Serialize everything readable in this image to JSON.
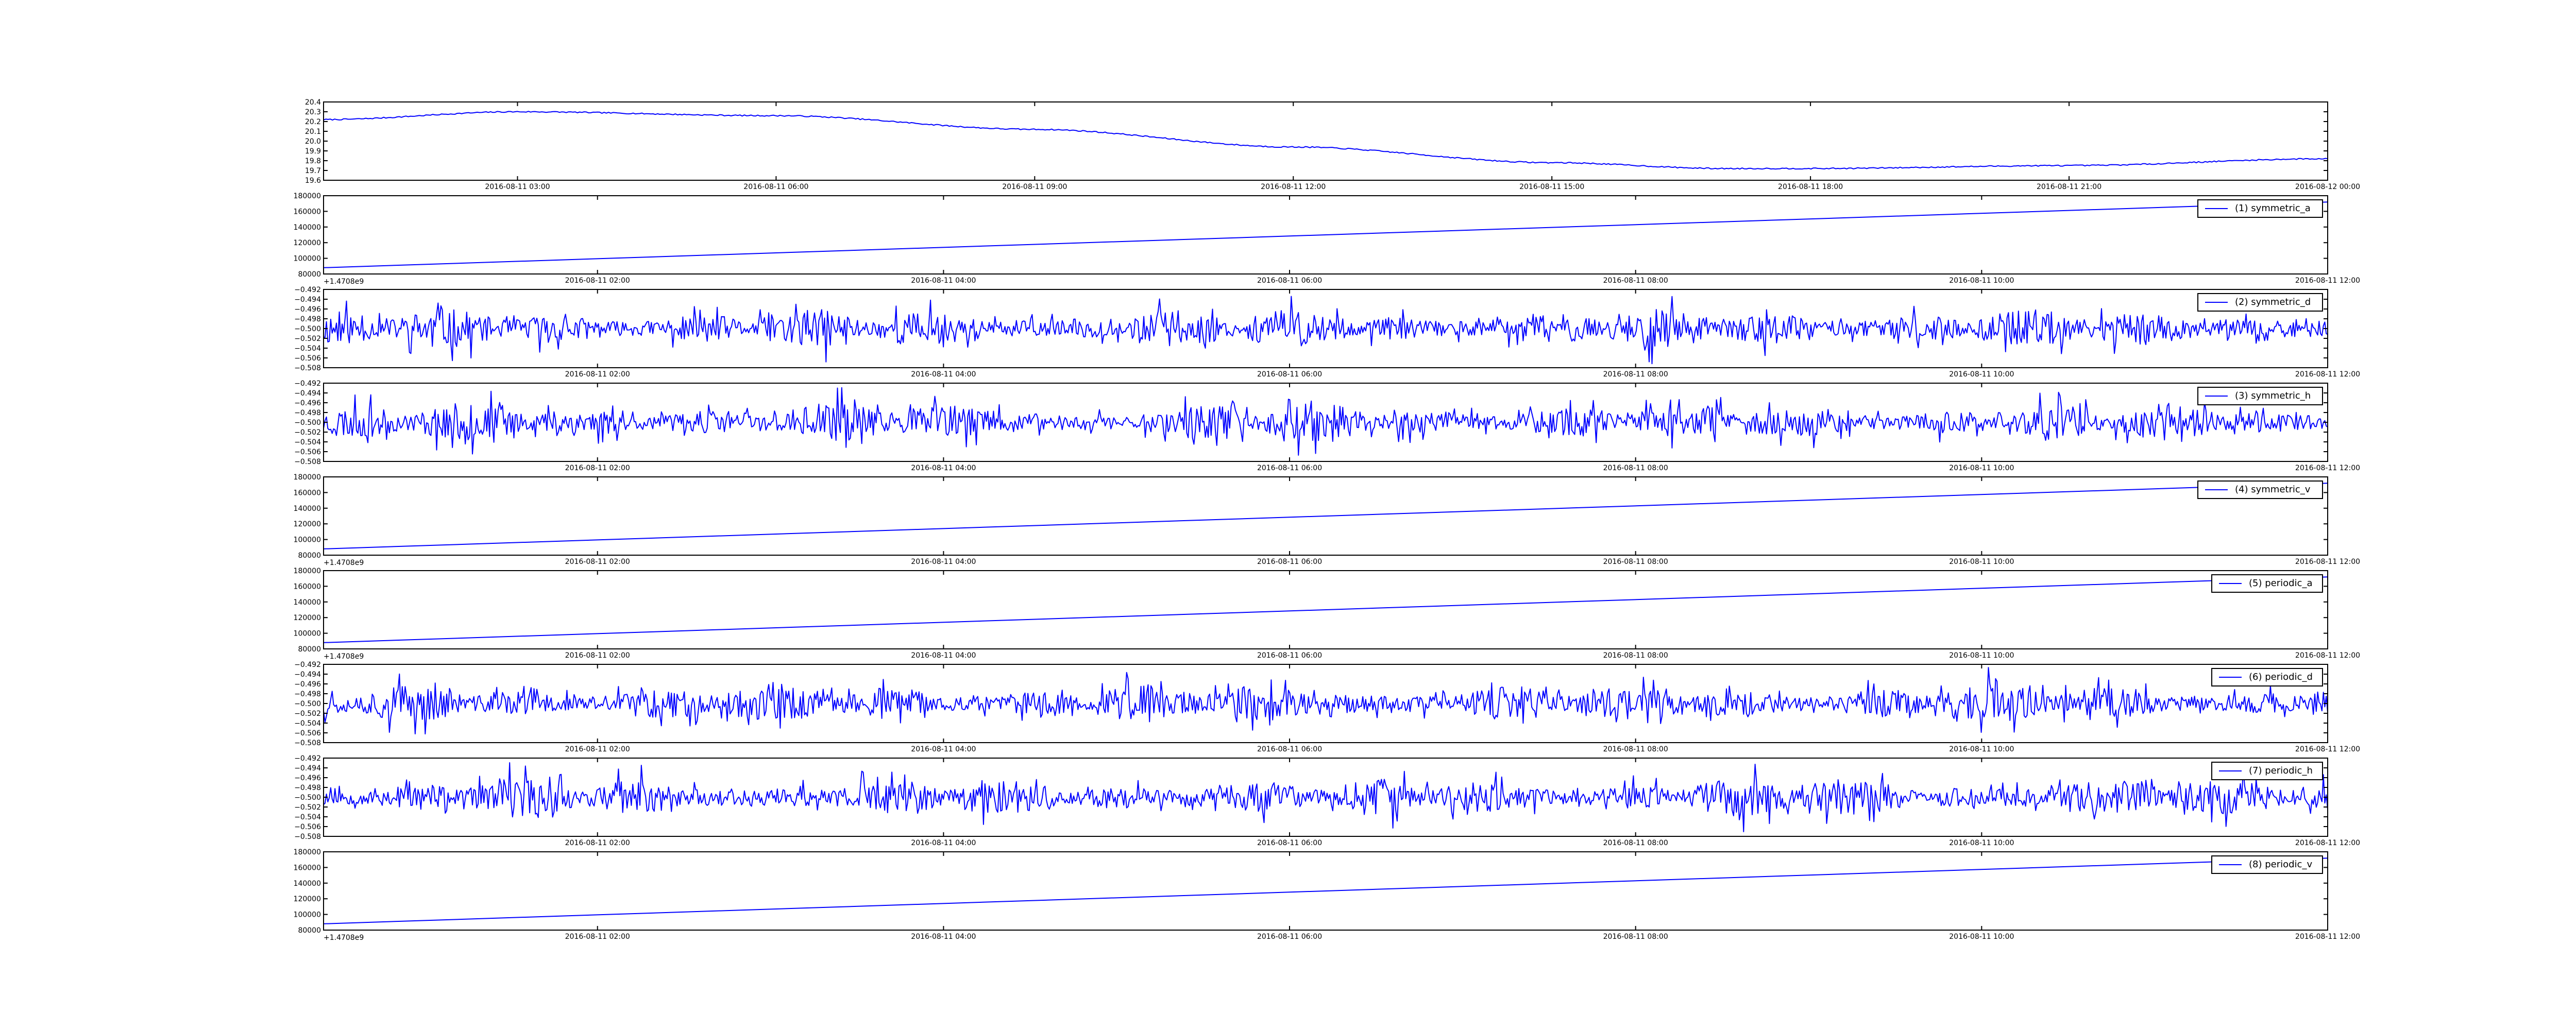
{
  "figure": {
    "background": "#ffffff",
    "line_color": "#0000ff"
  },
  "chart_data": [
    {
      "type": "line",
      "legend": "",
      "x_ticks": [
        "2016-08-11 03:00",
        "2016-08-11 06:00",
        "2016-08-11 09:00",
        "2016-08-11 12:00",
        "2016-08-11 15:00",
        "2016-08-11 18:00",
        "2016-08-11 21:00",
        "2016-08-12 00:00"
      ],
      "xlim": [
        "2016-08-11 00:45",
        "2016-08-12 00:00"
      ],
      "y_ticks": [
        "19.6",
        "19.7",
        "19.8",
        "19.9",
        "20.0",
        "20.1",
        "20.2",
        "20.3",
        "20.4"
      ],
      "ylim": [
        19.6,
        20.4
      ],
      "offset_text": "",
      "series": [
        {
          "x": [
            "2016-08-11 00:45",
            "2016-08-11 03:00",
            "2016-08-11 06:00",
            "2016-08-11 09:00",
            "2016-08-11 12:00",
            "2016-08-11 15:00",
            "2016-08-11 17:00",
            "2016-08-11 18:00",
            "2016-08-11 21:00",
            "2016-08-12 00:00"
          ],
          "y": [
            20.22,
            20.3,
            20.26,
            20.12,
            19.94,
            19.78,
            19.72,
            19.72,
            19.75,
            19.82
          ]
        }
      ]
    },
    {
      "type": "line",
      "legend": "(1) symmetric_a",
      "x_ticks": [
        "2016-08-11 02:00",
        "2016-08-11 04:00",
        "2016-08-11 06:00",
        "2016-08-11 08:00",
        "2016-08-11 10:00",
        "2016-08-11 12:00"
      ],
      "xlim": [
        "2016-08-11 00:25",
        "2016-08-11 12:00"
      ],
      "y_ticks": [
        "80000",
        "100000",
        "120000",
        "140000",
        "160000",
        "180000"
      ],
      "ylim": [
        80000,
        180000
      ],
      "offset_text": "+1.4708e9",
      "series": [
        {
          "x": [
            "2016-08-11 00:25",
            "2016-08-11 12:00"
          ],
          "y": [
            88000,
            172000
          ]
        }
      ]
    },
    {
      "type": "line",
      "legend": "(2) symmetric_d",
      "x_ticks": [
        "2016-08-11 02:00",
        "2016-08-11 04:00",
        "2016-08-11 06:00",
        "2016-08-11 08:00",
        "2016-08-11 10:00",
        "2016-08-11 12:00"
      ],
      "xlim": [
        "2016-08-11 00:25",
        "2016-08-11 12:00"
      ],
      "y_ticks": [
        "−0.508",
        "−0.506",
        "−0.504",
        "−0.502",
        "−0.500",
        "−0.498",
        "−0.496",
        "−0.494",
        "−0.492"
      ],
      "ylim": [
        -0.508,
        -0.492
      ],
      "offset_text": "",
      "series": [
        {
          "baseline": -0.5,
          "amplitude": 0.004,
          "seed": 11
        }
      ]
    },
    {
      "type": "line",
      "legend": "(3) symmetric_h",
      "x_ticks": [
        "2016-08-11 02:00",
        "2016-08-11 04:00",
        "2016-08-11 06:00",
        "2016-08-11 08:00",
        "2016-08-11 10:00",
        "2016-08-11 12:00"
      ],
      "xlim": [
        "2016-08-11 00:25",
        "2016-08-11 12:00"
      ],
      "y_ticks": [
        "−0.508",
        "−0.506",
        "−0.504",
        "−0.502",
        "−0.500",
        "−0.498",
        "−0.496",
        "−0.494",
        "−0.492"
      ],
      "ylim": [
        -0.508,
        -0.492
      ],
      "offset_text": "",
      "series": [
        {
          "baseline": -0.5,
          "amplitude": 0.004,
          "seed": 23
        }
      ]
    },
    {
      "type": "line",
      "legend": "(4) symmetric_v",
      "x_ticks": [
        "2016-08-11 02:00",
        "2016-08-11 04:00",
        "2016-08-11 06:00",
        "2016-08-11 08:00",
        "2016-08-11 10:00",
        "2016-08-11 12:00"
      ],
      "xlim": [
        "2016-08-11 00:25",
        "2016-08-11 12:00"
      ],
      "y_ticks": [
        "80000",
        "100000",
        "120000",
        "140000",
        "160000",
        "180000"
      ],
      "ylim": [
        80000,
        180000
      ],
      "offset_text": "+1.4708e9",
      "series": [
        {
          "x": [
            "2016-08-11 00:25",
            "2016-08-11 12:00"
          ],
          "y": [
            88000,
            172000
          ]
        }
      ]
    },
    {
      "type": "line",
      "legend": "(5) periodic_a",
      "x_ticks": [
        "2016-08-11 02:00",
        "2016-08-11 04:00",
        "2016-08-11 06:00",
        "2016-08-11 08:00",
        "2016-08-11 10:00",
        "2016-08-11 12:00"
      ],
      "xlim": [
        "2016-08-11 00:25",
        "2016-08-11 12:00"
      ],
      "y_ticks": [
        "80000",
        "100000",
        "120000",
        "140000",
        "160000",
        "180000"
      ],
      "ylim": [
        80000,
        180000
      ],
      "offset_text": "+1.4708e9",
      "series": [
        {
          "x": [
            "2016-08-11 00:25",
            "2016-08-11 12:00"
          ],
          "y": [
            88000,
            172000
          ]
        }
      ]
    },
    {
      "type": "line",
      "legend": "(6) periodic_d",
      "x_ticks": [
        "2016-08-11 02:00",
        "2016-08-11 04:00",
        "2016-08-11 06:00",
        "2016-08-11 08:00",
        "2016-08-11 10:00",
        "2016-08-11 12:00"
      ],
      "xlim": [
        "2016-08-11 00:25",
        "2016-08-11 12:00"
      ],
      "y_ticks": [
        "−0.508",
        "−0.506",
        "−0.504",
        "−0.502",
        "−0.500",
        "−0.498",
        "−0.496",
        "−0.494",
        "−0.492"
      ],
      "ylim": [
        -0.508,
        -0.492
      ],
      "offset_text": "",
      "series": [
        {
          "baseline": -0.5,
          "amplitude": 0.004,
          "seed": 37
        }
      ]
    },
    {
      "type": "line",
      "legend": "(7) periodic_h",
      "x_ticks": [
        "2016-08-11 02:00",
        "2016-08-11 04:00",
        "2016-08-11 06:00",
        "2016-08-11 08:00",
        "2016-08-11 10:00",
        "2016-08-11 12:00"
      ],
      "xlim": [
        "2016-08-11 00:25",
        "2016-08-11 12:00"
      ],
      "y_ticks": [
        "−0.508",
        "−0.506",
        "−0.504",
        "−0.502",
        "−0.500",
        "−0.498",
        "−0.496",
        "−0.494",
        "−0.492"
      ],
      "ylim": [
        -0.508,
        -0.492
      ],
      "offset_text": "",
      "series": [
        {
          "baseline": -0.5,
          "amplitude": 0.004,
          "seed": 53
        }
      ]
    },
    {
      "type": "line",
      "legend": "(8) periodic_v",
      "x_ticks": [
        "2016-08-11 02:00",
        "2016-08-11 04:00",
        "2016-08-11 06:00",
        "2016-08-11 08:00",
        "2016-08-11 10:00",
        "2016-08-11 12:00"
      ],
      "xlim": [
        "2016-08-11 00:25",
        "2016-08-11 12:00"
      ],
      "y_ticks": [
        "80000",
        "100000",
        "120000",
        "140000",
        "160000",
        "180000"
      ],
      "ylim": [
        80000,
        180000
      ],
      "offset_text": "+1.4708e9",
      "series": [
        {
          "x": [
            "2016-08-11 00:25",
            "2016-08-11 12:00"
          ],
          "y": [
            88000,
            172000
          ]
        }
      ]
    }
  ]
}
